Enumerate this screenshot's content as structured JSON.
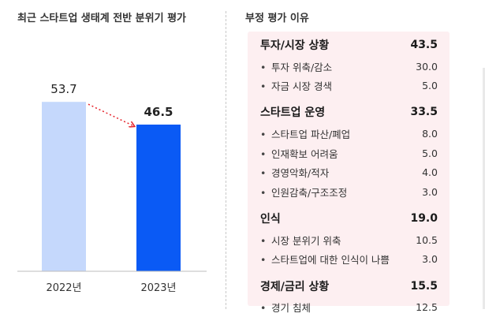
{
  "left_panel": {
    "title": "최근 스타트업 생태계 전반 분위기 평가"
  },
  "right_panel": {
    "title": "부정 평가 이유",
    "groups": [
      {
        "label": "투자/시장 상황",
        "value": "43.5",
        "items": [
          {
            "label": "투자 위축/감소",
            "value": "30.0"
          },
          {
            "label": "자금 시장 경색",
            "value": "5.0"
          }
        ]
      },
      {
        "label": "스타트업 운영",
        "value": "33.5",
        "items": [
          {
            "label": "스타트업 파산/폐업",
            "value": "8.0"
          },
          {
            "label": "인재확보 어려움",
            "value": "5.0"
          },
          {
            "label": "경영악화/적자",
            "value": "4.0"
          },
          {
            "label": "인원감축/구조조정",
            "value": "3.0"
          }
        ]
      },
      {
        "label": "인식",
        "value": "19.0",
        "items": [
          {
            "label": "시장 분위기 위축",
            "value": "10.5"
          },
          {
            "label": "스타트업에 대한 인식이 나쁨",
            "value": "3.0"
          }
        ]
      },
      {
        "label": "경제/금리 상황",
        "value": "15.5",
        "items": [
          {
            "label": "경기 침체",
            "value": "12.5"
          }
        ]
      }
    ]
  },
  "colors": {
    "bar_2022": "#c5d8fc",
    "bar_2023": "#0a5af5",
    "arrow": "#e6242c",
    "panel_bg": "#fdeff1"
  },
  "chart_data": {
    "type": "bar",
    "title": "최근 스타트업 생태계 전반 분위기 평가",
    "categories": [
      "2022년",
      "2023년"
    ],
    "values": [
      53.7,
      46.5
    ],
    "data_labels": [
      "53.7",
      "46.5"
    ],
    "xlabel": "",
    "ylabel": "",
    "ylim": [
      0,
      60
    ],
    "grid": false,
    "legend": "none",
    "annotation": "dotted arrow from 2022 value to 2023 value (decrease)"
  }
}
